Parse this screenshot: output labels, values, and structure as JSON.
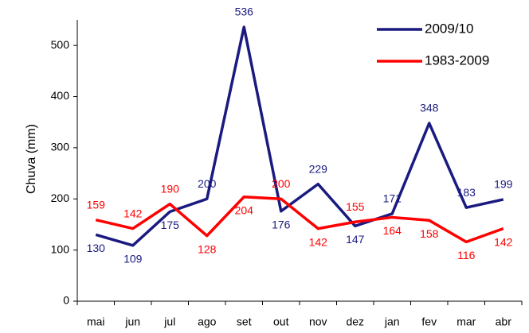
{
  "chart_data": {
    "type": "line",
    "y_label": "Chuva (mm)",
    "categories": [
      "mai",
      "jun",
      "jul",
      "ago",
      "set",
      "out",
      "nov",
      "dez",
      "jan",
      "fev",
      "mar",
      "abr"
    ],
    "series": [
      {
        "name": "2009/10",
        "color": "#1a1a80",
        "values": [
          130,
          109,
          175,
          200,
          536,
          176,
          229,
          147,
          171,
          348,
          183,
          199
        ]
      },
      {
        "name": "1983-2009",
        "color": "#ff0000",
        "values": [
          159,
          142,
          190,
          128,
          204,
          200,
          142,
          155,
          164,
          158,
          116,
          142
        ]
      }
    ],
    "ylim": [
      0,
      550
    ],
    "yticks": [
      0,
      100,
      200,
      300,
      400,
      500
    ],
    "legend": "top-right"
  }
}
